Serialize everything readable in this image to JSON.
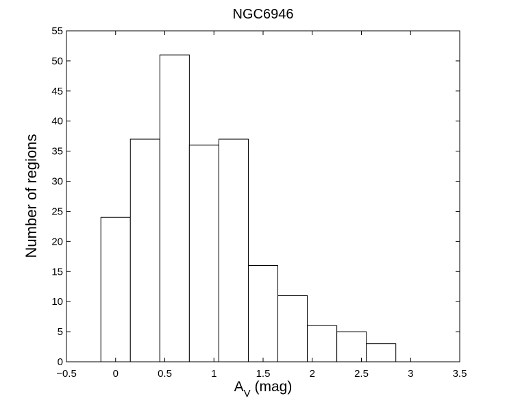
{
  "chart_data": {
    "type": "bar",
    "title": "NGC6946",
    "xlabel": {
      "main": "A",
      "subscript": "V",
      "suffix": " (mag)"
    },
    "ylabel": "Number of regions",
    "xlim": [
      -0.5,
      3.5
    ],
    "ylim": [
      0,
      55
    ],
    "grid": false,
    "x_ticks": [
      -0.5,
      0,
      0.5,
      1,
      1.5,
      2,
      2.5,
      3,
      3.5
    ],
    "x_tick_labels": [
      "−0.5",
      "0",
      "0.5",
      "1",
      "1.5",
      "2",
      "2.5",
      "3",
      "3.5"
    ],
    "y_ticks": [
      0,
      5,
      10,
      15,
      20,
      25,
      30,
      35,
      40,
      45,
      50,
      55
    ],
    "y_tick_labels": [
      "0",
      "5",
      "10",
      "15",
      "20",
      "25",
      "30",
      "35",
      "40",
      "45",
      "50",
      "55"
    ],
    "bin_edges": [
      -0.15,
      0.15,
      0.45,
      0.75,
      1.05,
      1.35,
      1.65,
      1.95,
      2.25,
      2.55,
      2.85
    ],
    "values": [
      24,
      37,
      51,
      36,
      37,
      16,
      11,
      6,
      5,
      3
    ]
  }
}
